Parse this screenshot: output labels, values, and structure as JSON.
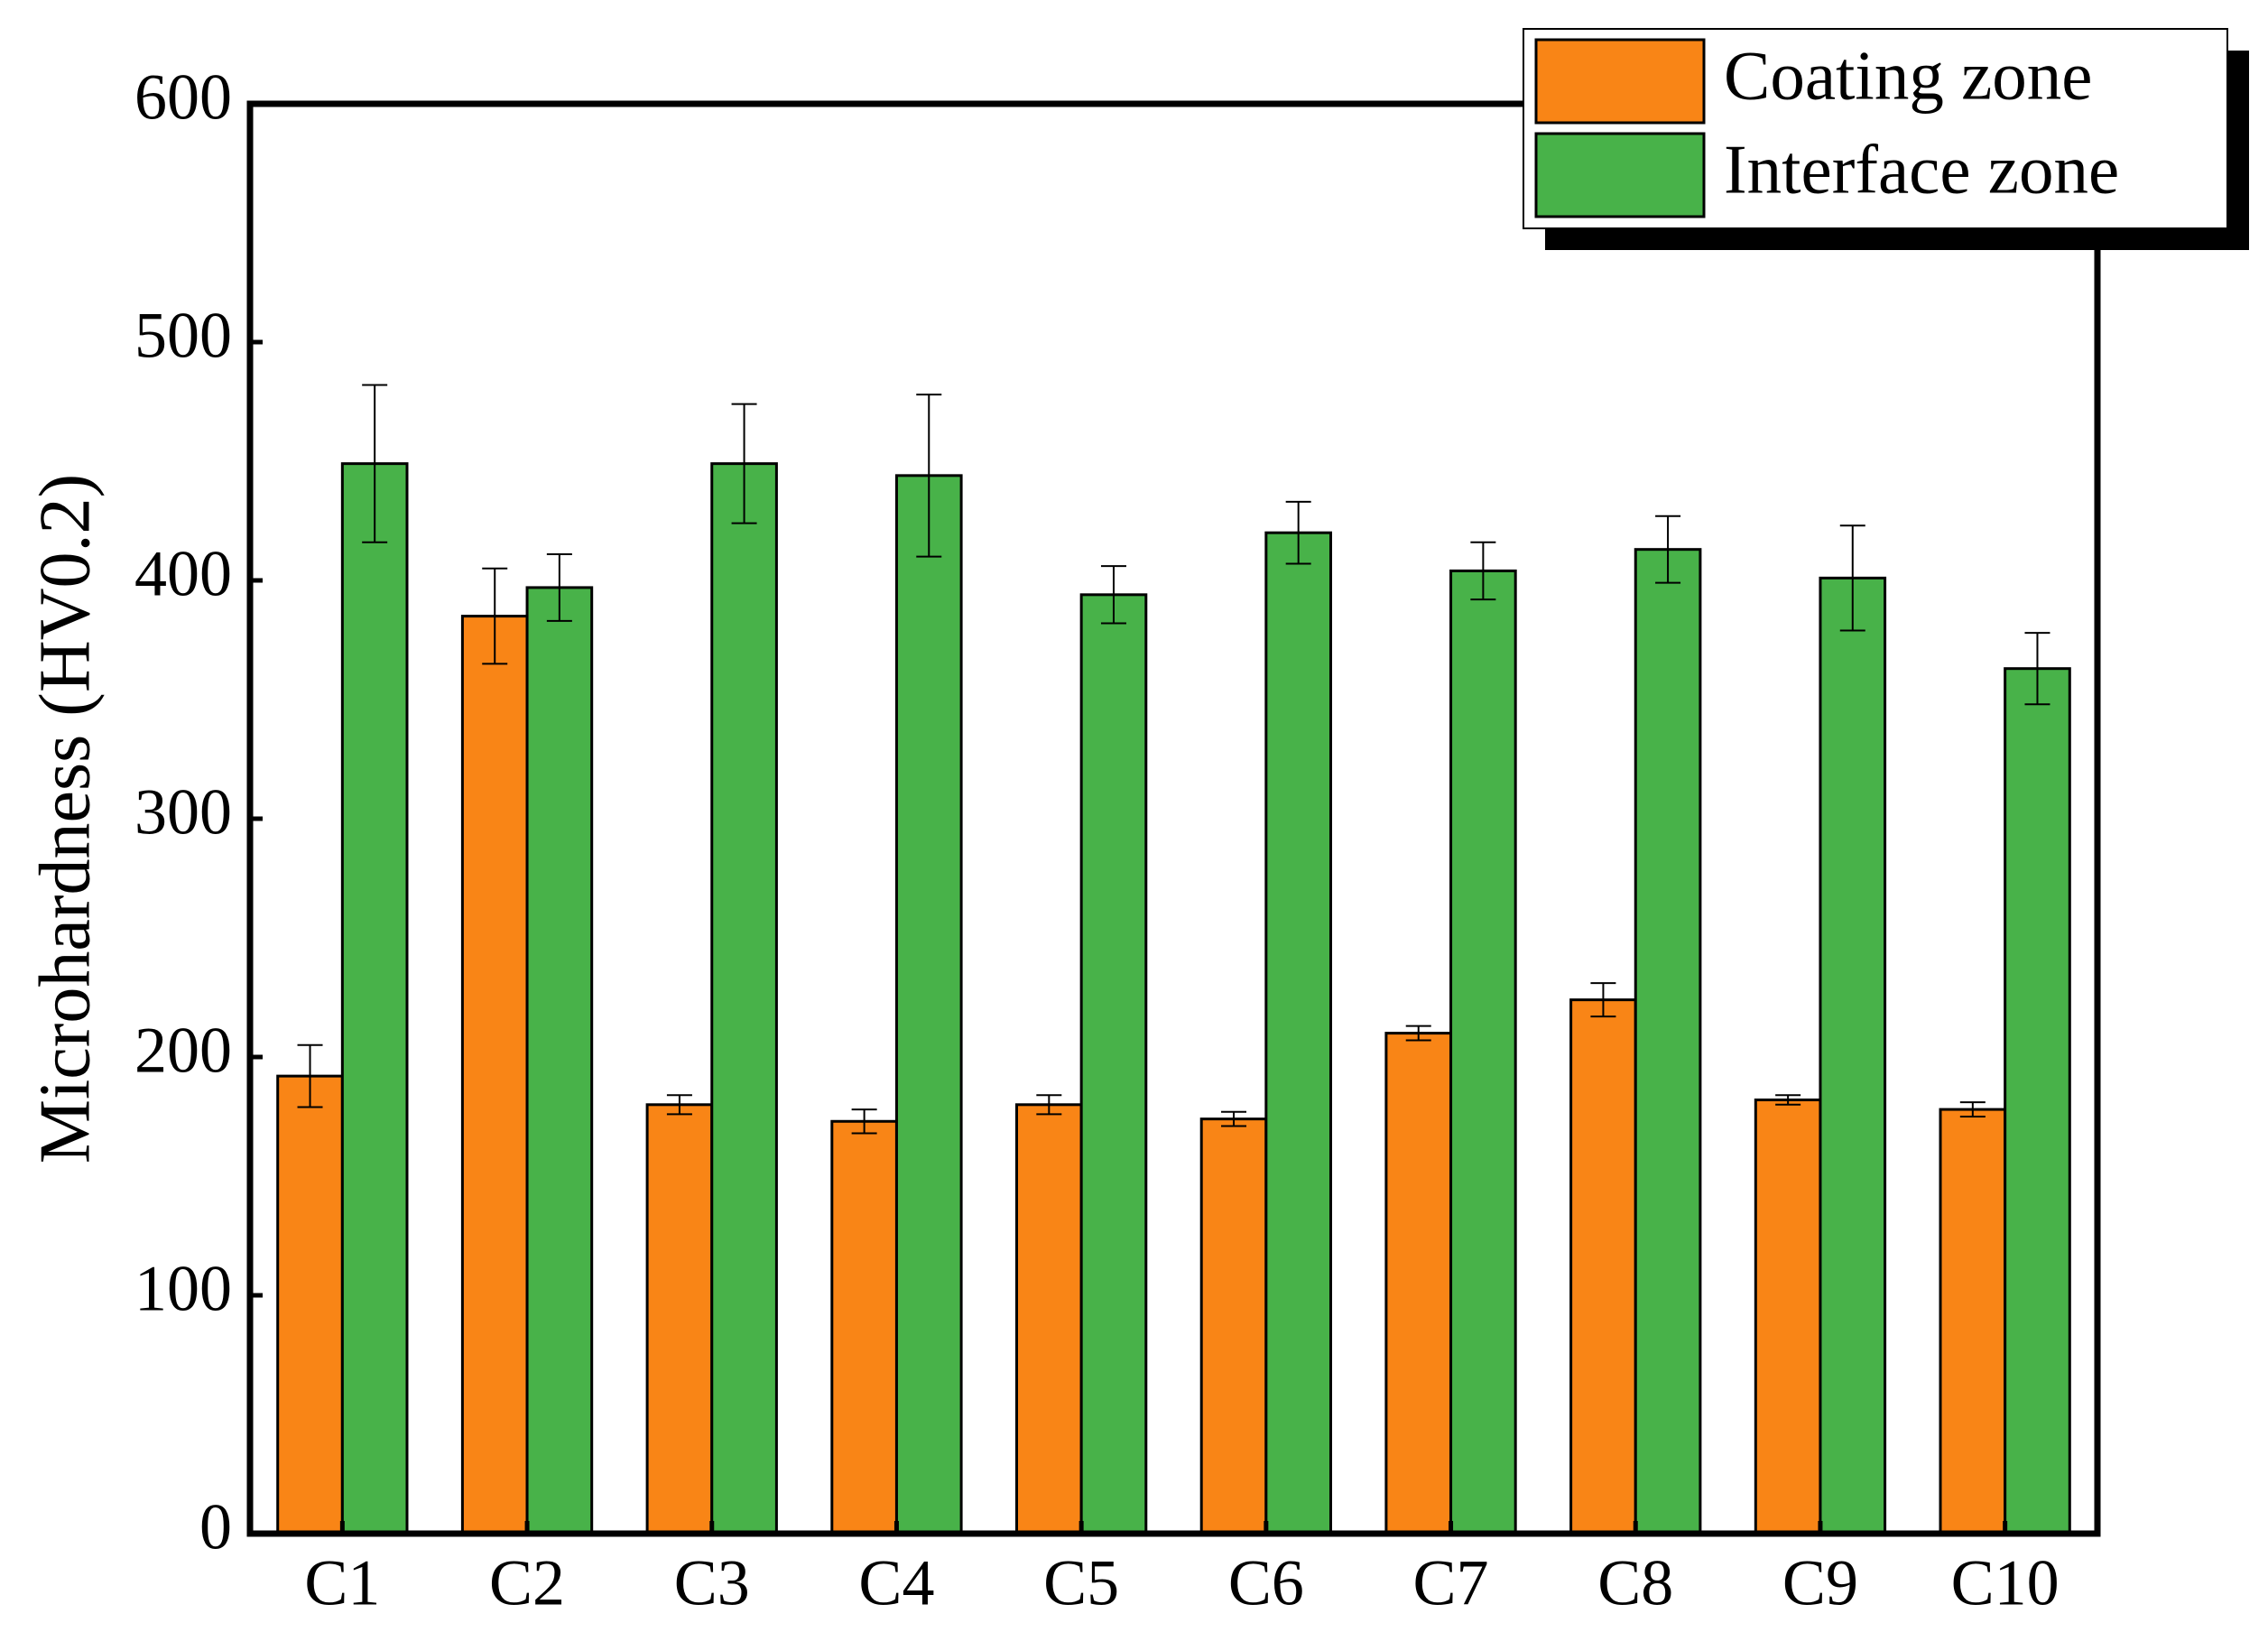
{
  "chart_data": {
    "type": "bar",
    "y_label": "Microhardness (HV0.2)",
    "categories": [
      "C1",
      "C2",
      "C3",
      "C4",
      "C5",
      "C6",
      "C7",
      "C8",
      "C9",
      "C10"
    ],
    "series": [
      {
        "name": "Coating zone",
        "color": "#f98516",
        "values": [
          192,
          385,
          180,
          173,
          180,
          174,
          210,
          224,
          182,
          178
        ],
        "errors": [
          13,
          20,
          4,
          5,
          4,
          3,
          3,
          7,
          2,
          3
        ]
      },
      {
        "name": "Interface zone",
        "color": "#48b249",
        "values": [
          449,
          397,
          449,
          444,
          394,
          420,
          404,
          413,
          401,
          363
        ],
        "errors": [
          33,
          14,
          25,
          34,
          12,
          13,
          12,
          14,
          22,
          15
        ]
      }
    ],
    "ylim": [
      0,
      600
    ],
    "yticks": [
      0,
      100,
      200,
      300,
      400,
      500,
      600
    ],
    "legend": "upper right"
  }
}
